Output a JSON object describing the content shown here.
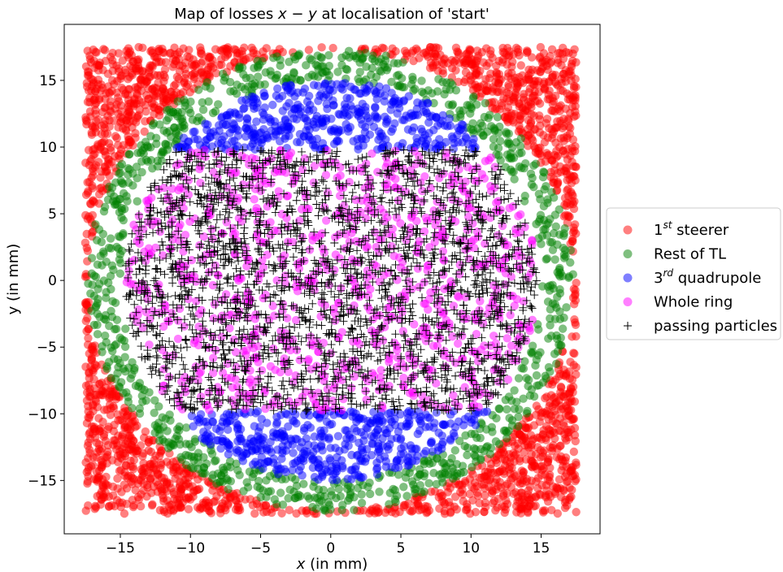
{
  "chart_data": {
    "type": "scatter",
    "title_prefix": "Map of losses ",
    "title_math": "x − y",
    "title_suffix": " at localisation of 'start'",
    "xlabel_math": "x",
    "xlabel_suffix": " (in mm)",
    "ylabel": "y (in mm)",
    "xlim": [
      -19,
      19.2
    ],
    "ylim": [
      -19,
      19.2
    ],
    "xticks": [
      -15,
      -10,
      -5,
      0,
      5,
      10,
      15
    ],
    "yticks": [
      -15,
      -10,
      -5,
      0,
      5,
      10,
      15
    ],
    "xtick_labels": [
      "−15",
      "−10",
      "−5",
      "0",
      "5",
      "10",
      "15"
    ],
    "ytick_labels": [
      "−15",
      "−10",
      "−5",
      "0",
      "5",
      "10",
      "15"
    ],
    "grid": false,
    "legend_placement": "outside-right",
    "series": [
      {
        "name_base": "1",
        "name_sup": "st",
        "name_rest": " steerer",
        "marker": "circle",
        "color": "#ff0000",
        "alpha": 0.5,
        "region": {
          "shape": "square-outside-disk",
          "half_width": 17.5,
          "disk_radius": 17.3
        },
        "count": 2100
      },
      {
        "name_base": "Rest of TL",
        "name_sup": "",
        "name_rest": "",
        "marker": "circle",
        "color": "#008000",
        "alpha": 0.5,
        "region": {
          "shape": "annulus",
          "r_inner": 15.0,
          "r_outer": 17.3
        },
        "count": 900
      },
      {
        "name_base": "3",
        "name_sup": "rd",
        "name_rest": " quadrupole",
        "marker": "circle",
        "color": "#0000ff",
        "alpha": 0.5,
        "region": {
          "shape": "disk-outside-band",
          "radius": 15.0,
          "band_half_height": 9.8
        },
        "count": 900
      },
      {
        "name_base": "Whole ring",
        "name_sup": "",
        "name_rest": "",
        "marker": "circle",
        "color": "#ff00ff",
        "alpha": 0.5,
        "region": {
          "shape": "disk-in-band",
          "radius": 14.7,
          "band_half_height": 9.8
        },
        "count": 1000
      },
      {
        "name_base": "passing particles",
        "name_sup": "",
        "name_rest": "",
        "marker": "plus",
        "color": "#000000",
        "alpha": 1.0,
        "region": {
          "shape": "disk-in-band",
          "radius": 14.7,
          "band_half_height": 9.8
        },
        "count": 2400
      }
    ]
  }
}
